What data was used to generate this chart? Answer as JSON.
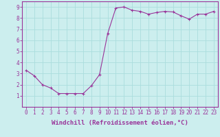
{
  "x": [
    0,
    1,
    2,
    3,
    4,
    5,
    6,
    7,
    8,
    9,
    10,
    11,
    12,
    13,
    14,
    15,
    16,
    17,
    18,
    19,
    20,
    21,
    22,
    23
  ],
  "y": [
    3.3,
    2.8,
    2.0,
    1.7,
    1.2,
    1.2,
    1.2,
    1.2,
    1.9,
    2.9,
    6.6,
    8.9,
    9.0,
    8.7,
    8.6,
    8.35,
    8.5,
    8.6,
    8.55,
    8.2,
    7.9,
    8.35,
    8.35,
    8.6
  ],
  "line_color": "#993399",
  "marker": "+",
  "marker_size": 3,
  "bg_color": "#cceeee",
  "grid_color": "#aadddd",
  "axis_color": "#993399",
  "xlabel": "Windchill (Refroidissement éolien,°C)",
  "ylim": [
    0,
    9.5
  ],
  "xlim": [
    -0.5,
    23.5
  ],
  "yticks": [
    1,
    2,
    3,
    4,
    5,
    6,
    7,
    8,
    9
  ],
  "xticks": [
    0,
    1,
    2,
    3,
    4,
    5,
    6,
    7,
    8,
    9,
    10,
    11,
    12,
    13,
    14,
    15,
    16,
    17,
    18,
    19,
    20,
    21,
    22,
    23
  ],
  "xlabel_fontsize": 6.5,
  "tick_fontsize": 5.5,
  "label_color": "#993399",
  "linewidth": 0.8,
  "markeredgewidth": 0.8
}
